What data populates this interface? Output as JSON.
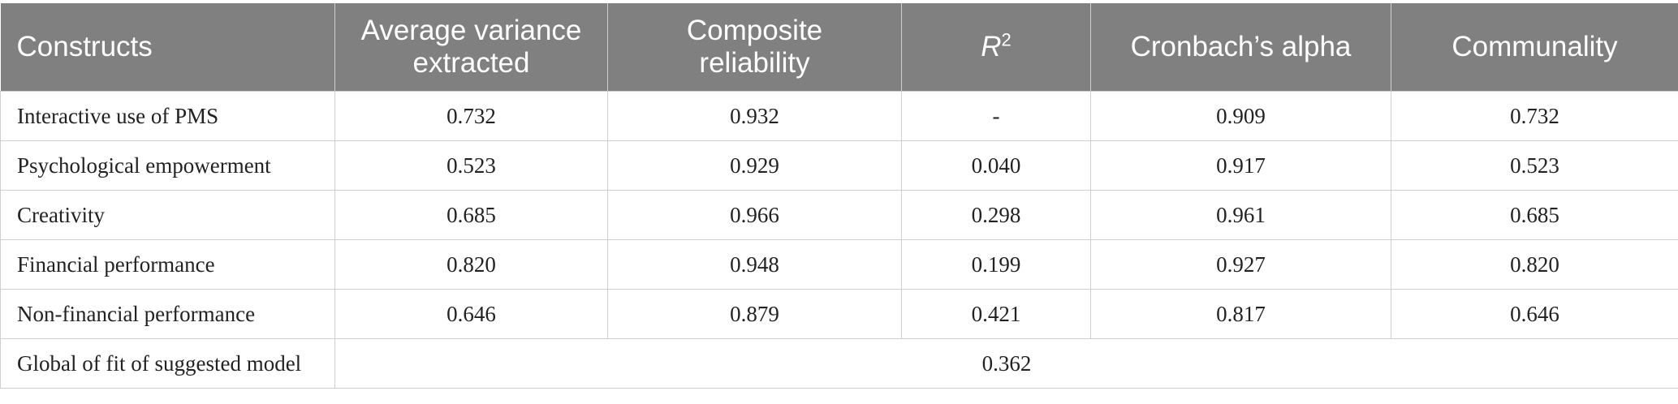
{
  "table": {
    "headers": {
      "constructs": "Constructs",
      "ave_line1": "Average variance",
      "ave_line2": "extracted",
      "cr_line1": "Composite",
      "cr_line2": "reliability",
      "r2_base": "R",
      "r2_sup": "2",
      "cronbach": "Cronbach’s alpha",
      "communality": "Communality"
    },
    "rows": [
      {
        "construct": "Interactive use of PMS",
        "ave": "0.732",
        "cr": "0.932",
        "r2": "-",
        "alpha": "0.909",
        "communality": "0.732"
      },
      {
        "construct": "Psychological empowerment",
        "ave": "0.523",
        "cr": "0.929",
        "r2": "0.040",
        "alpha": "0.917",
        "communality": "0.523"
      },
      {
        "construct": "Creativity",
        "ave": "0.685",
        "cr": "0.966",
        "r2": "0.298",
        "alpha": "0.961",
        "communality": "0.685"
      },
      {
        "construct": "Financial performance",
        "ave": "0.820",
        "cr": "0.948",
        "r2": "0.199",
        "alpha": "0.927",
        "communality": "0.820"
      },
      {
        "construct": "Non-financial performance",
        "ave": "0.646",
        "cr": "0.879",
        "r2": "0.421",
        "alpha": "0.817",
        "communality": "0.646"
      }
    ],
    "footer": {
      "label": "Global of fit of suggested model",
      "value": "0.362"
    },
    "colors": {
      "header_bg": "#808080",
      "header_text": "#ffffff",
      "grid": "#cfcfcf"
    }
  }
}
